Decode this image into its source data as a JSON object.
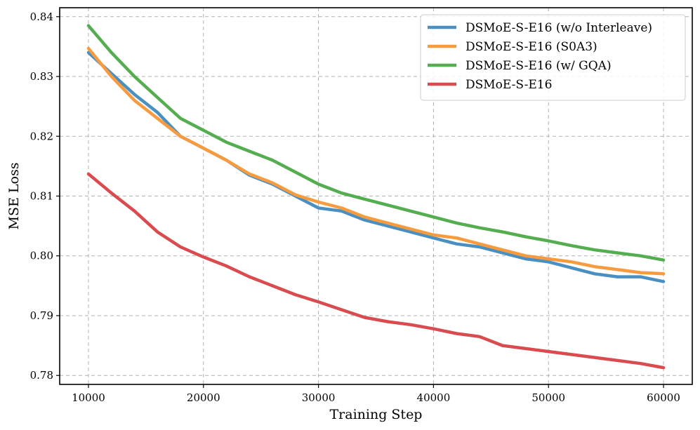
{
  "chart_data": {
    "type": "line",
    "title": "",
    "xlabel": "Training Step",
    "ylabel": "MSE Loss",
    "xlim": [
      7500,
      62500
    ],
    "ylim": [
      0.7785,
      0.8415
    ],
    "xticks": [
      10000,
      20000,
      30000,
      40000,
      50000,
      60000
    ],
    "xtick_labels": [
      "10000",
      "20000",
      "30000",
      "40000",
      "50000",
      "60000"
    ],
    "yticks": [
      0.78,
      0.79,
      0.8,
      0.81,
      0.82,
      0.83,
      0.84
    ],
    "ytick_labels": [
      "0.78",
      "0.79",
      "0.80",
      "0.81",
      "0.82",
      "0.83",
      "0.84"
    ],
    "grid": true,
    "legend_position": "top-right",
    "x": [
      10000,
      12000,
      14000,
      16000,
      18000,
      20000,
      22000,
      24000,
      26000,
      28000,
      30000,
      32000,
      34000,
      36000,
      38000,
      40000,
      42000,
      44000,
      46000,
      48000,
      50000,
      52000,
      54000,
      56000,
      58000,
      60000
    ],
    "series": [
      {
        "name": "DSMoE-S-E16 (w/o Interleave)",
        "color": "#4a8fc1",
        "values": [
          0.834,
          0.8305,
          0.827,
          0.824,
          0.82,
          0.818,
          0.816,
          0.8135,
          0.812,
          0.81,
          0.808,
          0.8075,
          0.806,
          0.805,
          0.804,
          0.803,
          0.802,
          0.8015,
          0.8005,
          0.7995,
          0.799,
          0.798,
          0.797,
          0.7965,
          0.7965,
          0.7957
        ]
      },
      {
        "name": "DSMoE-S-E16 (S0A3)",
        "color": "#f89b3e",
        "values": [
          0.8347,
          0.83,
          0.826,
          0.823,
          0.82,
          0.818,
          0.816,
          0.8137,
          0.8122,
          0.8102,
          0.809,
          0.808,
          0.8065,
          0.8055,
          0.8045,
          0.8035,
          0.803,
          0.802,
          0.801,
          0.8,
          0.7995,
          0.799,
          0.7982,
          0.7977,
          0.7972,
          0.797
        ]
      },
      {
        "name": "DSMoE-S-E16 (w/ GQA)",
        "color": "#54ae50",
        "values": [
          0.8385,
          0.834,
          0.83,
          0.8265,
          0.823,
          0.821,
          0.819,
          0.8175,
          0.816,
          0.814,
          0.812,
          0.8105,
          0.8095,
          0.8085,
          0.8075,
          0.8065,
          0.8055,
          0.8047,
          0.804,
          0.8032,
          0.8025,
          0.8017,
          0.801,
          0.8005,
          0.8,
          0.7993
        ]
      },
      {
        "name": "DSMoE-S-E16",
        "color": "#d94b4e",
        "values": [
          0.8137,
          0.8105,
          0.8075,
          0.804,
          0.8015,
          0.7998,
          0.7983,
          0.7965,
          0.795,
          0.7935,
          0.7923,
          0.791,
          0.7897,
          0.789,
          0.7885,
          0.7878,
          0.787,
          0.7865,
          0.785,
          0.7845,
          0.784,
          0.7835,
          0.783,
          0.7825,
          0.782,
          0.7813
        ]
      }
    ]
  }
}
